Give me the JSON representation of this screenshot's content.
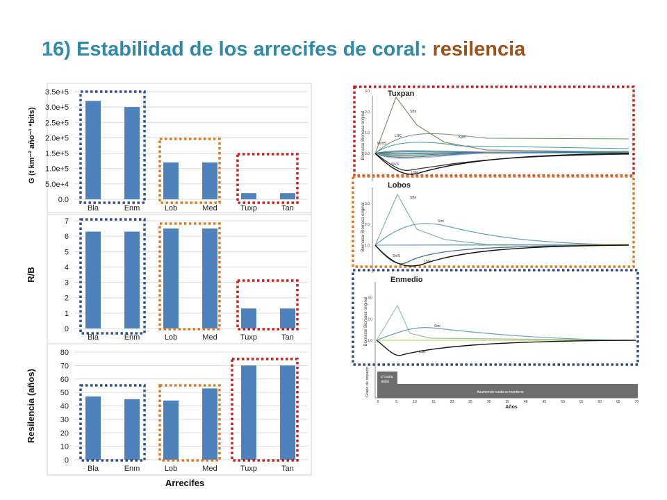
{
  "title": {
    "main": "16) Estabilidad de los arrecifes de coral: ",
    "accent": "resilencia"
  },
  "colors": {
    "title": "#2f8aa6",
    "accent": "#a0521c",
    "bar": "#4f81bd",
    "box_blue": "#2f4f8f",
    "box_orange": "#e07820",
    "box_red": "#cc1f1f"
  },
  "chart_data": [
    {
      "type": "bar",
      "categories": [
        "Bla",
        "Enm",
        "Lob",
        "Med",
        "Tuxp",
        "Tan"
      ],
      "values": [
        320000,
        300000,
        120000,
        120000,
        20000,
        20000
      ],
      "ylabel": "G (t km⁻² año⁻¹ *bits)",
      "ylim": [
        0,
        350000
      ],
      "yticks": [
        "0.0",
        "5.0e+4",
        "1.0e+5",
        "1.5e+5",
        "2.0e+5",
        "2.5e+5",
        "3.0e+5",
        "3.5e+5"
      ],
      "grid": true
    },
    {
      "type": "bar",
      "categories": [
        "Bla",
        "Enm",
        "Lob",
        "Med",
        "Tuxp",
        "Tan"
      ],
      "values": [
        6.3,
        6.3,
        6.5,
        6.5,
        1.3,
        1.3
      ],
      "ylabel": "R/B",
      "ylim": [
        0,
        7
      ],
      "yticks": [
        "0",
        "1",
        "2",
        "3",
        "4",
        "5",
        "6",
        "7"
      ],
      "grid": true
    },
    {
      "type": "bar",
      "categories": [
        "Bla",
        "Enm",
        "Lob",
        "Med",
        "Tuxp",
        "Tan"
      ],
      "values": [
        47,
        45,
        44,
        53,
        70,
        70
      ],
      "ylabel": "Resilencia (años)",
      "xlabel": "Arrecifes",
      "ylim": [
        0,
        80
      ],
      "yticks": [
        "0",
        "10",
        "20",
        "30",
        "40",
        "50",
        "60",
        "70",
        "80"
      ],
      "grid": true
    },
    {
      "type": "line",
      "title": "Tuxpan",
      "ylabel": "Biomasa/ Biomasa original",
      "yticks": [
        "0.0",
        "1.0",
        "2.0",
        "3.0"
      ],
      "curve_labels": [
        "SBlr",
        "Kpth",
        "LGC",
        "MedS",
        "Sh/S",
        "LSR"
      ]
    },
    {
      "type": "line",
      "title": "Lobos",
      "ylabel": "Biomasa/ Biomasa original",
      "yticks": [
        "1.0",
        "2.0",
        "3.0"
      ],
      "curve_labels": [
        "SBlr",
        "Stor",
        "Sh/S",
        "LSR"
      ]
    },
    {
      "type": "line",
      "title": "Enmedio",
      "ylabel": "Biomasa/ Biomasa original",
      "yticks": [
        "1.0",
        "2.0",
        "3.0"
      ],
      "curve_labels": [
        "Stor",
        "LSR"
      ]
    },
    {
      "type": "bar",
      "title": "Grado de impacto",
      "xlabel": "Años",
      "x": [
        0,
        5,
        10,
        15,
        20,
        25,
        30,
        35,
        40,
        45,
        50,
        55,
        60,
        65,
        70
      ],
      "annotations": [
        "c/ cuota doble",
        "Asumiendo cuota se mantiene"
      ],
      "ylabel": "Grado de impacto"
    }
  ]
}
